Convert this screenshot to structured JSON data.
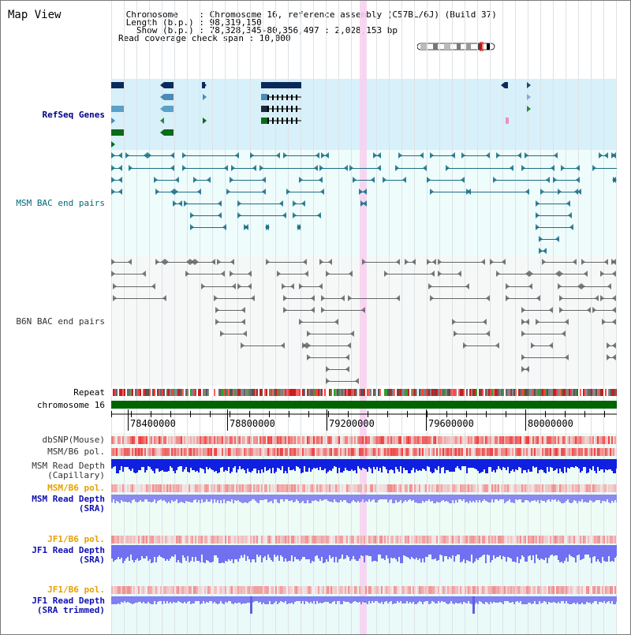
{
  "title": "Map View",
  "info": {
    "lines": [
      " Chromosome    : Chromosome 16, reference assembly (C57BL/6J) (Build 37)",
      " Length (b.p.) : 98,319,150",
      "   Show (b.p.) : 78,328,345-80,356,497 : 2,028,153 bp",
      "Read coverage check span : 10,000"
    ]
  },
  "tracks": {
    "refseq": "RefSeq Genes",
    "msm_bac": "MSM BAC end pairs",
    "b6n_bac": "B6N BAC end pairs",
    "repeat": "Repeat",
    "chromosome": "chromosome 16",
    "dbsnp": "dbSNP(Mouse)",
    "msm_pol": "MSM/B6 pol.",
    "msm_depth_cap": "MSM Read Depth",
    "msm_depth_cap2": "(Capillary)",
    "msm_pol_sra": "MSM/B6 pol.",
    "msm_depth_sra": "MSM Read Depth",
    "msm_depth_sra2": "(SRA)",
    "jf1_pol": "JF1/B6 pol.",
    "jf1_depth": "JF1 Read Depth",
    "jf1_depth2": "(SRA)",
    "jf1_pol2": "JF1/B6 pol.",
    "jf1_depth_trim": "JF1 Read Depth",
    "jf1_depth_trim2": "(SRA trimmed)"
  },
  "axis": {
    "ticks": [
      "78400000",
      "78800000",
      "79200000",
      "79600000",
      "80000000"
    ]
  },
  "colors": {
    "refseq_bg": "#d7f0fa",
    "track_bg": "#eefcfc",
    "highlight": "#f8d0f0",
    "chromosome": "#006400",
    "msm_bac": "#1a6e86",
    "b6n_bac": "#666666",
    "depth": "#2020e0",
    "depth_light": "#8080f0"
  }
}
